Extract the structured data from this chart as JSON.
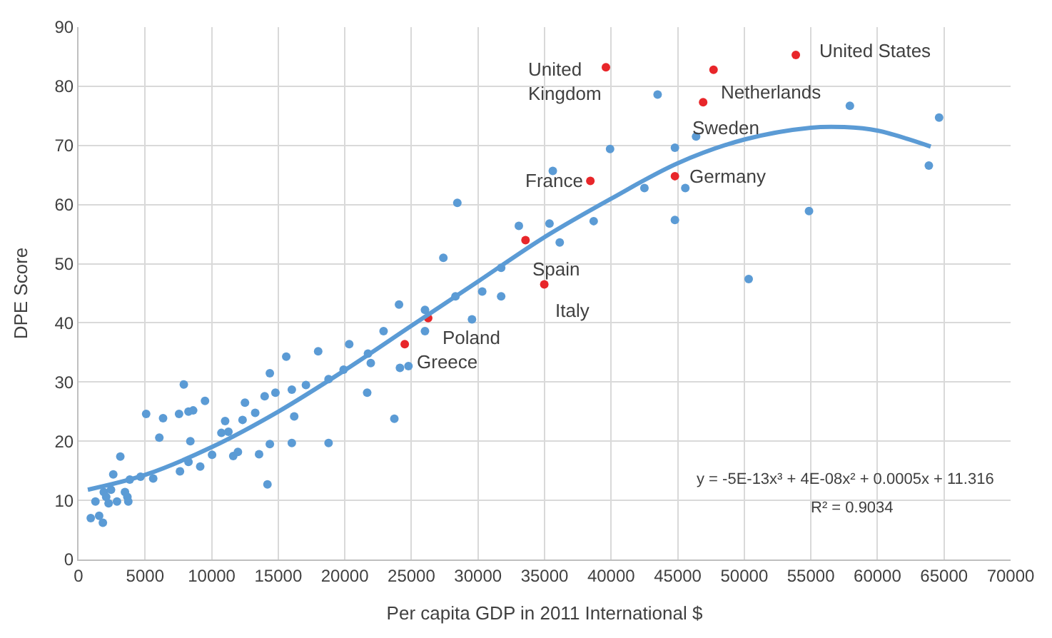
{
  "chart_data": {
    "type": "scatter",
    "xlabel": "Per capita GDP in 2011 International $",
    "ylabel": "DPE Score",
    "xlim": [
      0,
      70000
    ],
    "xticks": [
      0,
      5000,
      10000,
      15000,
      20000,
      25000,
      30000,
      35000,
      40000,
      45000,
      50000,
      55000,
      60000,
      65000,
      70000
    ],
    "ylim": [
      0,
      90
    ],
    "yticks": [
      0,
      10,
      20,
      30,
      40,
      50,
      60,
      70,
      80,
      90
    ],
    "grid": true,
    "marker": "circle",
    "series": [
      {
        "color": "#5b9bd5",
        "x": [
          920,
          1550,
          1830,
          1270,
          1900,
          2080,
          2260,
          2440,
          2610,
          2890,
          3140,
          3490,
          3670,
          3740,
          3850,
          4660,
          5080,
          5610,
          6070,
          6350,
          7620,
          7550,
          7910,
          8260,
          8260,
          8610,
          8400,
          9140,
          9500,
          10030,
          10730,
          11010,
          11260,
          11620,
          11970,
          12320,
          12500,
          13270,
          13560,
          14190,
          14370,
          14370,
          13980,
          14790,
          15600,
          16020,
          16020,
          16200,
          17080,
          18000,
          18780,
          18780,
          19910,
          20330,
          21680,
          21740,
          21950,
          22910,
          24070,
          24140,
          24780,
          23720,
          26020,
          26020,
          27400,
          28310,
          28450,
          29550,
          30320,
          31740,
          31740,
          33070,
          35370,
          36140,
          35620,
          38690,
          43490,
          46380,
          44790,
          39920,
          42500,
          45570,
          44790,
          54860,
          57930,
          64630,
          63860,
          50330
        ],
        "values": [
          7.0,
          7.4,
          6.2,
          9.8,
          11.4,
          10.6,
          9.5,
          11.8,
          14.4,
          9.8,
          17.4,
          11.4,
          10.6,
          9.8,
          13.5,
          14.0,
          24.6,
          13.7,
          20.6,
          23.9,
          14.9,
          24.6,
          29.6,
          16.5,
          25.0,
          25.2,
          20.0,
          15.7,
          26.8,
          17.7,
          21.4,
          23.4,
          21.6,
          17.5,
          18.2,
          23.6,
          26.5,
          24.8,
          17.8,
          12.7,
          31.5,
          19.5,
          27.6,
          28.2,
          34.3,
          28.7,
          19.7,
          24.2,
          29.5,
          35.2,
          19.7,
          30.5,
          32.1,
          36.4,
          28.2,
          34.8,
          33.2,
          38.6,
          43.1,
          32.4,
          32.7,
          23.8,
          38.6,
          42.2,
          51.0,
          44.5,
          60.3,
          40.6,
          45.3,
          49.3,
          44.5,
          56.4,
          56.8,
          53.6,
          65.7,
          57.2,
          78.6,
          71.5,
          69.6,
          69.4,
          62.8,
          62.8,
          57.4,
          58.9,
          76.7,
          74.7,
          66.6,
          47.4
        ]
      },
      {
        "color": "#e8262a",
        "x": [
          24500,
          26260,
          33570,
          34980,
          38440,
          39610,
          46910,
          47690,
          53870,
          44790
        ],
        "values": [
          36.4,
          40.8,
          54.0,
          46.5,
          64.0,
          83.2,
          77.3,
          82.8,
          85.3,
          64.8
        ]
      },
      {
        "type": "line",
        "color": "#5b9bd5",
        "marker": "none",
        "x": [
          700,
          5000,
          10000,
          15000,
          20000,
          25000,
          30000,
          35000,
          40000,
          45000,
          50000,
          55000,
          57500,
          60000,
          64000
        ],
        "values": [
          11.8,
          14.3,
          19,
          25,
          32,
          39.5,
          47,
          54.5,
          61,
          67,
          71,
          73,
          73.1,
          72.5,
          69.8
        ]
      }
    ],
    "annotations": [
      {
        "text": "Greece",
        "x": 24500,
        "y": 36.4
      },
      {
        "text": "Poland",
        "x": 26260,
        "y": 40.8
      },
      {
        "text": "Spain",
        "x": 33570,
        "y": 54.0
      },
      {
        "text": "Italy",
        "x": 34980,
        "y": 46.5
      },
      {
        "text": "France",
        "x": 38440,
        "y": 64.0
      },
      {
        "text": "United\nKingdom",
        "x": 39610,
        "y": 83.2
      },
      {
        "text": "Sweden",
        "x": 46910,
        "y": 77.3
      },
      {
        "text": "Netherlands",
        "x": 47690,
        "y": 82.8
      },
      {
        "text": "United States",
        "x": 53870,
        "y": 85.3
      },
      {
        "text": "Germany",
        "x": 44790,
        "y": 64.8
      },
      "y = -5E-13x³ + 4E-08x² + 0.0005x + 11.316",
      "R² = 0.9034"
    ]
  }
}
